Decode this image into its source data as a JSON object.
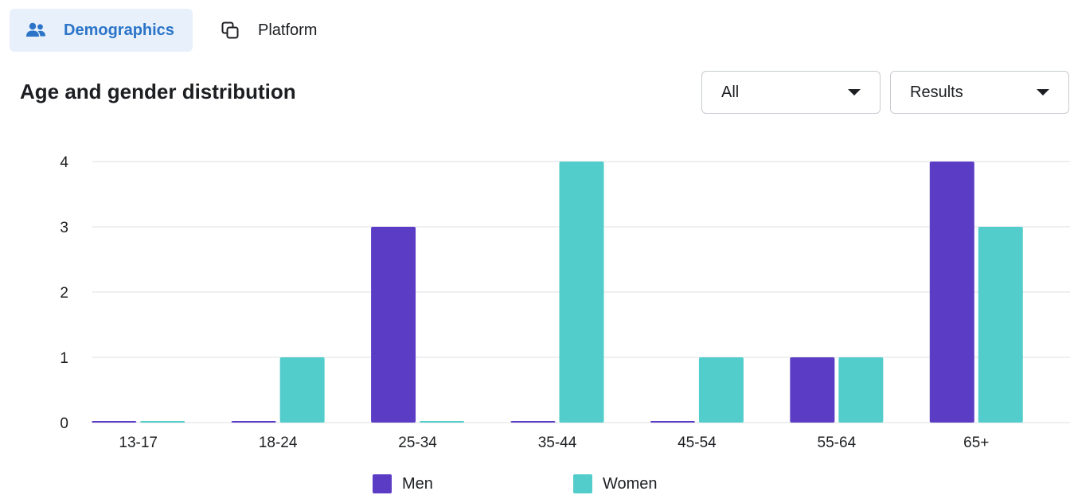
{
  "tabs": [
    {
      "label": "Demographics",
      "icon": "people-icon",
      "active": true
    },
    {
      "label": "Platform",
      "icon": "overlapping-squares-icon",
      "active": false
    }
  ],
  "colors": {
    "accent": "#2b74c8",
    "men": "#5b3cc4",
    "women": "#52cdcb",
    "grid": "#dcdfe3"
  },
  "filters": {
    "audience": "All",
    "metric": "Results"
  },
  "chart_data": {
    "type": "bar",
    "title": "Age and gender distribution",
    "categories": [
      "13-17",
      "18-24",
      "25-34",
      "35-44",
      "45-54",
      "55-64",
      "65+"
    ],
    "series": [
      {
        "name": "Men",
        "values": [
          0,
          0,
          3,
          0,
          0,
          1,
          4
        ]
      },
      {
        "name": "Women",
        "values": [
          0,
          1,
          0,
          4,
          1,
          1,
          3
        ]
      }
    ],
    "yticks": [
      "0",
      "1",
      "2",
      "3",
      "4"
    ],
    "ylim": [
      0,
      4
    ],
    "grid": true,
    "legend": "bottom-center"
  }
}
